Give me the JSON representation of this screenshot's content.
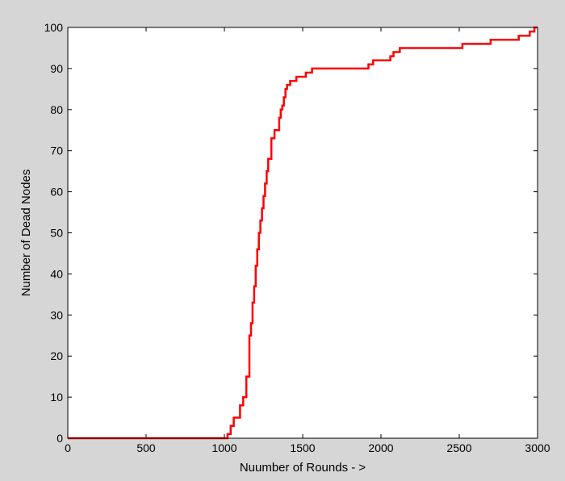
{
  "colors": {
    "figure_background": "#d6d6d6",
    "axes_background": "#ffffff",
    "axes_edge": "#000000",
    "line": "#ff0000"
  },
  "chart_data": {
    "type": "line",
    "title": "",
    "xlabel": "Nuumber of Rounds - >",
    "ylabel": "Number of Dead Nodes",
    "xlim": [
      0,
      3000
    ],
    "ylim": [
      0,
      100
    ],
    "xticks": [
      0,
      500,
      1000,
      1500,
      2000,
      2500,
      3000
    ],
    "yticks": [
      0,
      10,
      20,
      30,
      40,
      50,
      60,
      70,
      80,
      90,
      100
    ],
    "grid": false,
    "legend": "none",
    "series": [
      {
        "style": "step",
        "x": [
          0,
          1000,
          1020,
          1040,
          1060,
          1080,
          1100,
          1120,
          1140,
          1160,
          1170,
          1180,
          1190,
          1200,
          1210,
          1220,
          1230,
          1240,
          1250,
          1260,
          1270,
          1280,
          1300,
          1320,
          1340,
          1350,
          1360,
          1370,
          1380,
          1390,
          1400,
          1420,
          1440,
          1460,
          1480,
          1500,
          1520,
          1540,
          1560,
          1600,
          1700,
          1800,
          1900,
          1920,
          1950,
          2000,
          2030,
          2060,
          2080,
          2100,
          2120,
          2200,
          2300,
          2400,
          2500,
          2520,
          2600,
          2700,
          2800,
          2850,
          2880,
          2900,
          2950,
          2980
        ],
        "y": [
          0,
          0,
          1,
          3,
          5,
          5,
          8,
          10,
          15,
          25,
          28,
          33,
          37,
          42,
          46,
          50,
          53,
          56,
          59,
          62,
          65,
          68,
          73,
          75,
          75,
          78,
          80,
          81,
          83,
          85,
          86,
          87,
          87,
          88,
          88,
          88,
          89,
          89,
          90,
          90,
          90,
          90,
          90,
          91,
          92,
          92,
          92,
          93,
          94,
          94,
          95,
          95,
          95,
          95,
          95,
          96,
          96,
          97,
          97,
          97,
          98,
          98,
          99,
          100
        ]
      }
    ]
  }
}
